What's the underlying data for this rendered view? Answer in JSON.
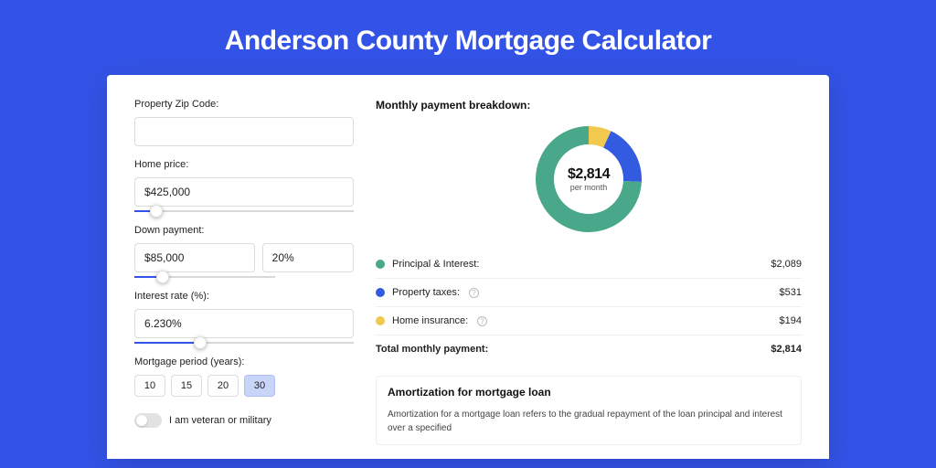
{
  "page": {
    "title": "Anderson County Mortgage Calculator",
    "background_color": "#3353e7",
    "card_background": "#ffffff"
  },
  "form": {
    "zip": {
      "label": "Property Zip Code:",
      "value": ""
    },
    "home_price": {
      "label": "Home price:",
      "value": "$425,000",
      "slider_percent": 10
    },
    "down_payment": {
      "label": "Down payment:",
      "amount": "$85,000",
      "percent": "20%",
      "slider_percent": 20
    },
    "interest_rate": {
      "label": "Interest rate (%):",
      "value": "6.230%",
      "slider_percent": 30
    },
    "period": {
      "label": "Mortgage period (years):",
      "options": [
        "10",
        "15",
        "20",
        "30"
      ],
      "selected_index": 3
    },
    "veteran_toggle": {
      "label": "I am veteran or military",
      "on": false
    }
  },
  "breakdown": {
    "title": "Monthly payment breakdown:",
    "donut": {
      "amount": "$2,814",
      "sub": "per month",
      "slices": [
        {
          "key": "principal_interest",
          "value": 2089,
          "color": "#4aa88a",
          "angle": 267
        },
        {
          "key": "property_taxes",
          "value": 531,
          "color": "#335be0",
          "angle": 68
        },
        {
          "key": "home_insurance",
          "value": 194,
          "color": "#f1c94e",
          "angle": 25
        }
      ],
      "thickness": 20
    },
    "legend": [
      {
        "name": "Principal & Interest:",
        "value": "$2,089",
        "color": "#4aa88a",
        "info": false
      },
      {
        "name": "Property taxes:",
        "value": "$531",
        "color": "#335be0",
        "info": true
      },
      {
        "name": "Home insurance:",
        "value": "$194",
        "color": "#f1c94e",
        "info": true
      }
    ],
    "total": {
      "name": "Total monthly payment:",
      "value": "$2,814"
    }
  },
  "amortization": {
    "title": "Amortization for mortgage loan",
    "text": "Amortization for a mortgage loan refers to the gradual repayment of the loan principal and interest over a specified"
  }
}
